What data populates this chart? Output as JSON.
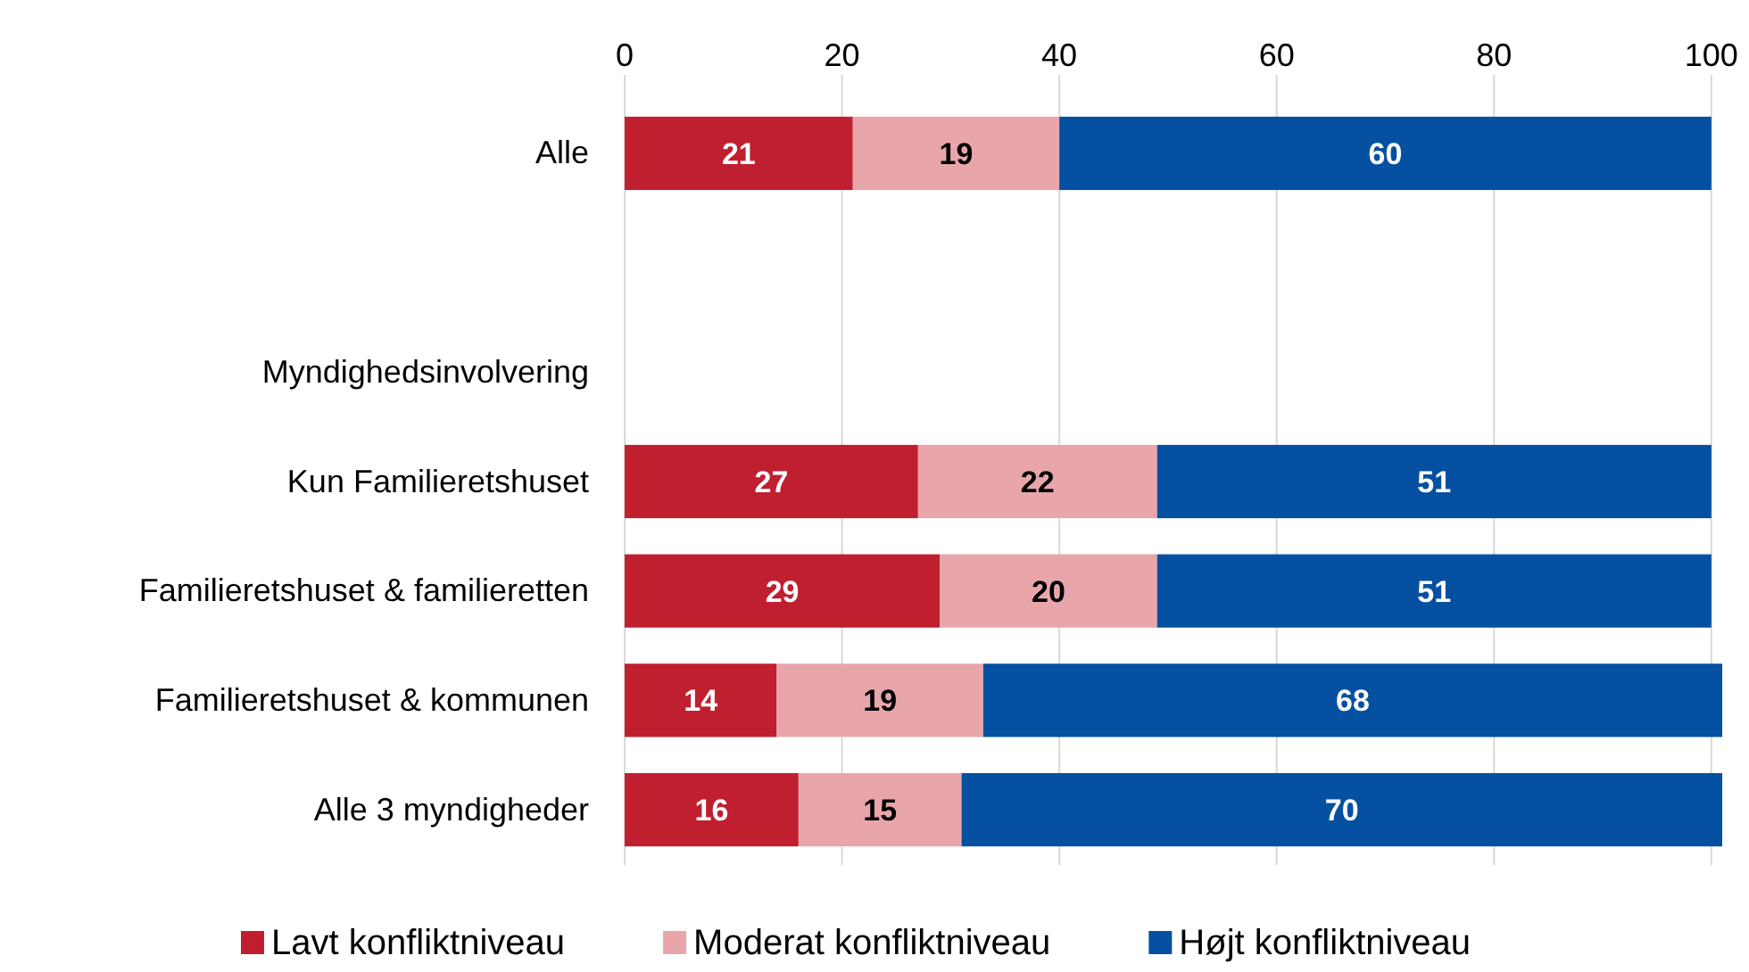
{
  "chart_data": {
    "type": "bar",
    "orientation": "horizontal",
    "stacked": true,
    "categories": [
      "Alle",
      null,
      "Myndighedsinvolvering",
      "Kun Familieretshuset",
      "Familieretshuset & familieretten",
      "Familieretshuset & kommunen",
      "Alle 3 myndigheder"
    ],
    "series": [
      {
        "name": "Lavt konfliktniveau",
        "color": "#c01f2f",
        "values": [
          21,
          null,
          null,
          27,
          29,
          14,
          16
        ]
      },
      {
        "name": "Moderat konfliktniveau",
        "color": "#e8a6ab",
        "values": [
          19,
          null,
          null,
          22,
          20,
          19,
          15
        ]
      },
      {
        "name": "Højt konfliktniveau",
        "color": "#0550a0",
        "values": [
          60,
          null,
          null,
          51,
          51,
          68,
          70
        ]
      }
    ],
    "xlim": [
      0,
      101
    ],
    "xticks": [
      0,
      20,
      40,
      60,
      80,
      100
    ],
    "grid": "x",
    "legend": "bottom",
    "data_labels": true
  }
}
